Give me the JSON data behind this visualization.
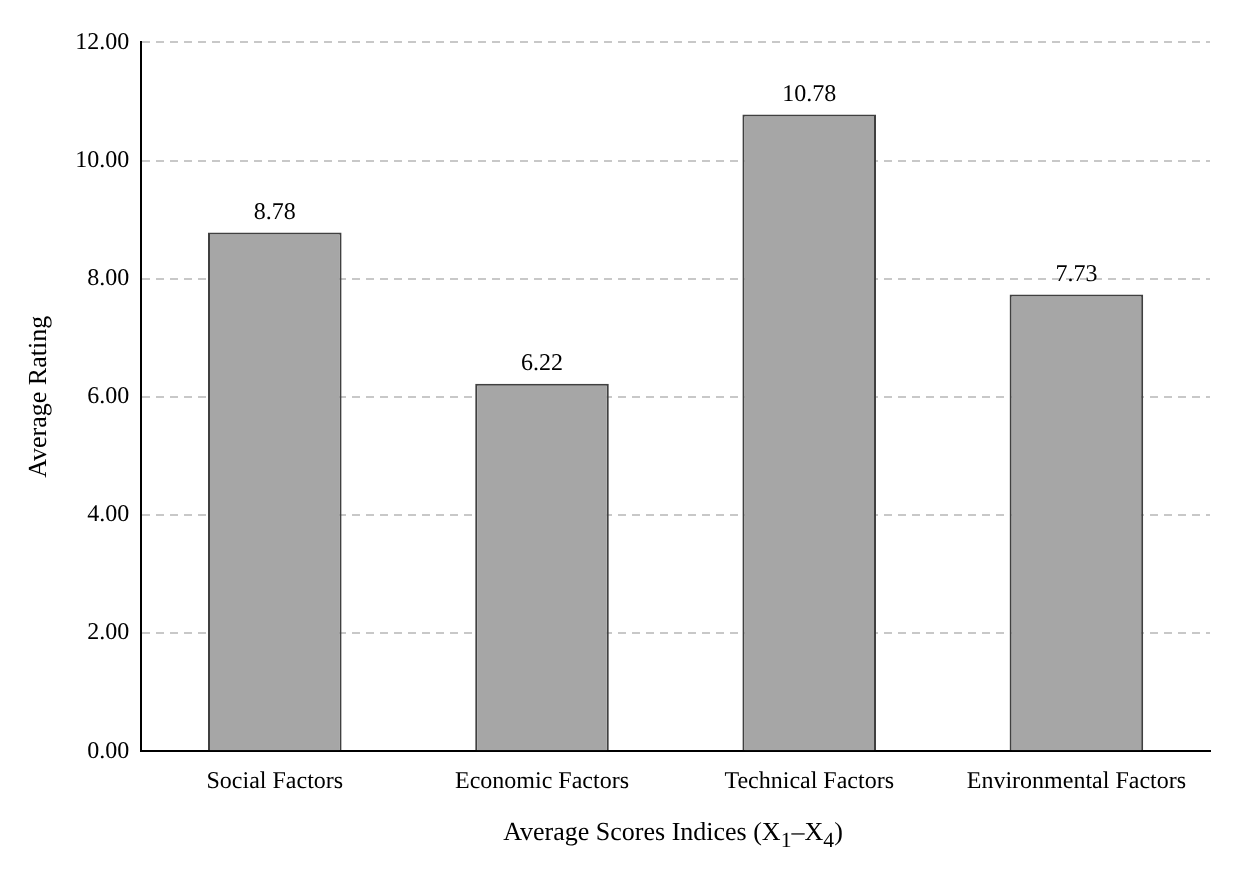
{
  "chart_data": {
    "type": "bar",
    "xlabel": "Average Scores Indices (X$_{1}$–X$_{4}$)",
    "ylabel": "Average Rating",
    "categories": [
      "Social Factors",
      "Economic Factors",
      "Technical Factors",
      "Environmental Factors"
    ],
    "values": [
      8.78,
      6.22,
      10.78,
      7.73
    ],
    "color": "#a6a6a6",
    "data_labels": true,
    "ylim": [
      0,
      12
    ],
    "yticks": [
      {
        "value": 0,
        "label": "0.00"
      },
      {
        "value": 2,
        "label": "2.00"
      },
      {
        "value": 4,
        "label": "4.00"
      },
      {
        "value": 6,
        "label": "6.00"
      },
      {
        "value": 8,
        "label": "8.00"
      },
      {
        "value": 10,
        "label": "10.00"
      },
      {
        "value": 12,
        "label": "12.00"
      }
    ],
    "grid": "y",
    "legend": false
  }
}
